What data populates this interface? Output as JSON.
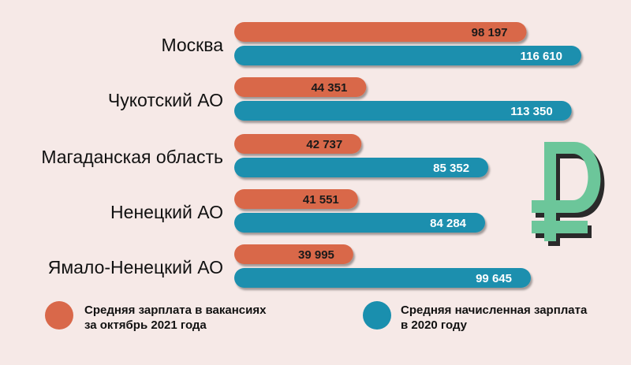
{
  "colors": {
    "background": "#f6e9e7",
    "vacancies": "#d9684a",
    "accrued": "#1a8fae",
    "ruble": "#6cc69a"
  },
  "ruble_icon": "ruble-sign-icon",
  "chart_data": {
    "type": "bar",
    "orientation": "horizontal",
    "categories": [
      "Москва",
      "Чукотский АО",
      "Магаданская область",
      "Ненецкий АО",
      "Ямало-Ненецкий АО"
    ],
    "series": [
      {
        "name": "Средняя зарплата в вакансиях за октябрь 2021 года",
        "values": [
          98197,
          44351,
          42737,
          41551,
          39995
        ],
        "labels": [
          "98 197",
          "44 351",
          "42 737",
          "41 551",
          "39 995"
        ]
      },
      {
        "name": "Средняя начисленная зарплата в 2020 году",
        "values": [
          116610,
          113350,
          85352,
          84284,
          99645
        ],
        "labels": [
          "116 610",
          "113 350",
          "85 352",
          "84 284",
          "99 645"
        ]
      }
    ],
    "legend": {
      "position": "bottom",
      "items": [
        {
          "lines": [
            "Средняя зарплата в вакансиях",
            "за октябрь 2021 года"
          ]
        },
        {
          "lines": [
            "Средняя начисленная зарплата",
            "в 2020 году"
          ]
        }
      ]
    },
    "grid": false
  }
}
